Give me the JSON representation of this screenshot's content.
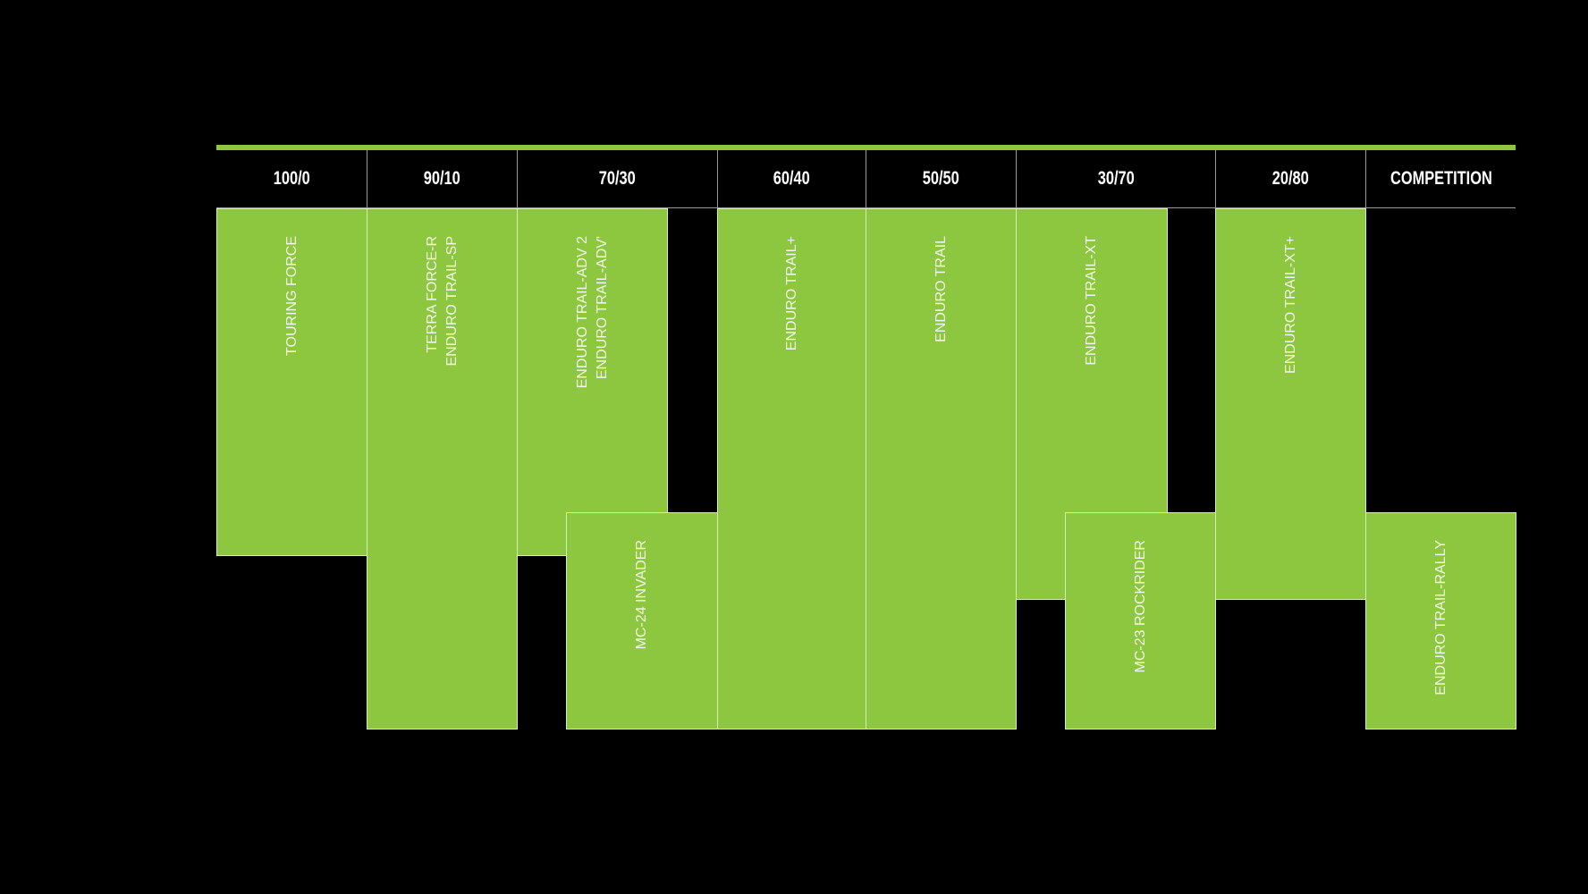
{
  "colors": {
    "accent": "#8dc63f",
    "background": "#000000",
    "text": "#ffffff"
  },
  "columns": [
    "100/0",
    "90/10",
    "70/30",
    "60/40",
    "50/50",
    "30/70",
    "20/80",
    "COMPETITION"
  ],
  "products": {
    "touring_force": "TOURING FORCE",
    "terra_force": "TERRA FORCE-R\nENDURO TRAIL-SP",
    "enduro_adv": "ENDURO TRAIL-ADV 2\nENDURO TRAIL-ADV'",
    "mc24": "MC-24 INVADER",
    "enduro_plus": "ENDURO TRAIL+",
    "enduro_trail": "ENDURO TRAIL",
    "enduro_xt": "ENDURO TRAIL-XT",
    "mc23": "MC-23 ROCKRIDER",
    "enduro_xt_plus": "ENDURO TRAIL-XT+",
    "enduro_rally": "ENDURO TRAIL-RALLY"
  }
}
